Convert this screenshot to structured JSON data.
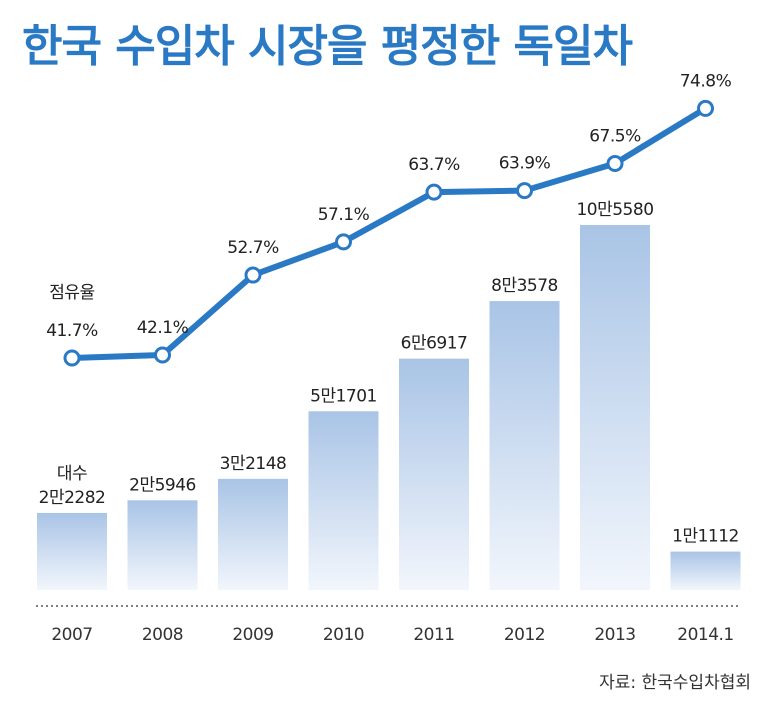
{
  "title": "한국 수입차 시장을 평정한 독일차",
  "source": "자료: 한국수입차협회",
  "chart_data": {
    "type": "bar+line",
    "categories": [
      "2007",
      "2008",
      "2009",
      "2010",
      "2011",
      "2012",
      "2013",
      "2014.1"
    ],
    "bar_series": {
      "name": "대수",
      "values": [
        22282,
        25946,
        32148,
        51701,
        66917,
        83578,
        105580,
        11112
      ],
      "labels": [
        "2만2282",
        "2만5946",
        "3만2148",
        "5만1701",
        "6만6917",
        "8만3578",
        "10만5580",
        "1만1112"
      ]
    },
    "line_series": {
      "name": "점유율",
      "values": [
        41.7,
        42.1,
        52.7,
        57.1,
        63.7,
        63.9,
        67.5,
        74.8
      ],
      "labels": [
        "41.7%",
        "42.1%",
        "52.7%",
        "57.1%",
        "63.7%",
        "63.9%",
        "67.5%",
        "74.8%"
      ]
    },
    "colors": {
      "line": "#2a79c4",
      "bar_top": "#a9c4e6",
      "bar_bottom": "#f2f6fc",
      "title": "#2a79c4"
    }
  }
}
